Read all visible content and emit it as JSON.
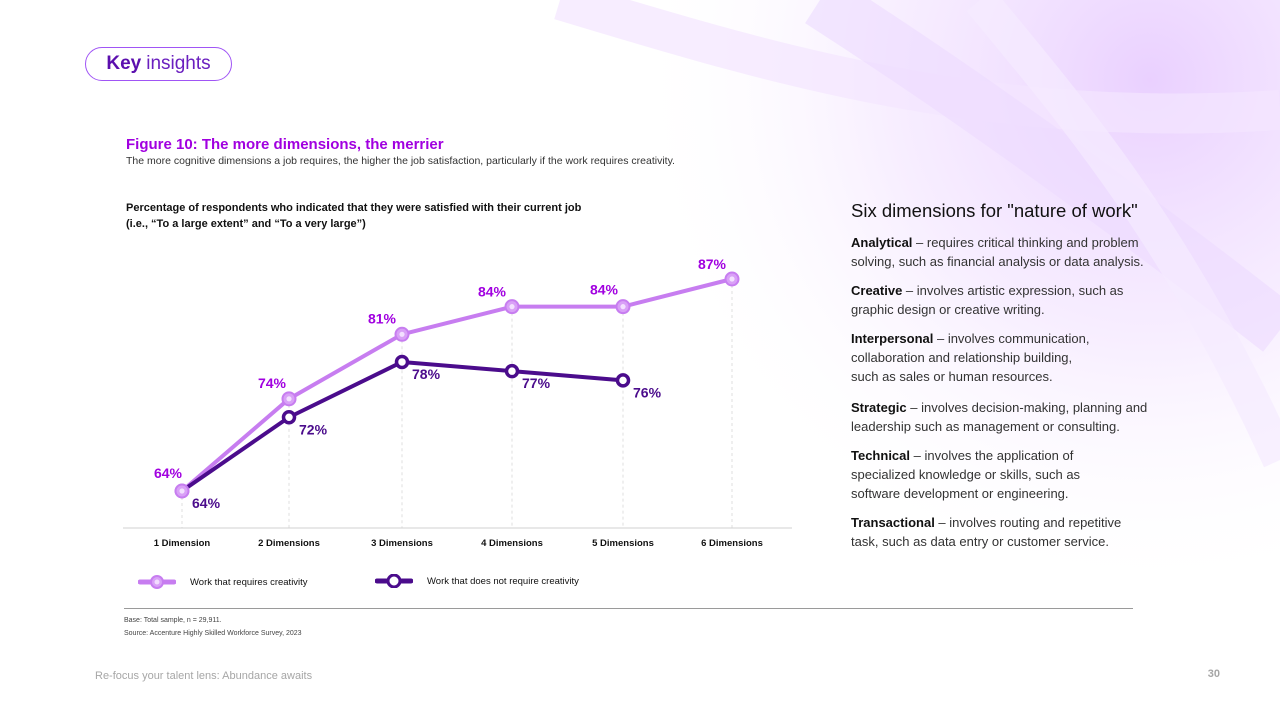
{
  "badge": {
    "bold": "Key",
    "text": "insights"
  },
  "figure": {
    "title": "Figure 10: The more dimensions, the merrier",
    "subtitle": "The more cognitive dimensions a job requires, the higher the job satisfaction, particularly if the work requires creativity."
  },
  "chart_question": {
    "line1": "Percentage of respondents who indicated that they were satisfied with their current job",
    "line2": "(i.e., “To a large extent” and “To a very large”)"
  },
  "chart_data": {
    "type": "line",
    "categories": [
      "1 Dimension",
      "2 Dimensions",
      "3 Dimensions",
      "4 Dimensions",
      "5 Dimensions",
      "6 Dimensions"
    ],
    "series": [
      {
        "name": "Work that requires creativity",
        "values": [
          64,
          74,
          81,
          84,
          84,
          87
        ],
        "labels": [
          "64%",
          "74%",
          "81%",
          "84%",
          "84%",
          "87%"
        ],
        "color": "#c77df0"
      },
      {
        "name": "Work that does not require creativity",
        "values": [
          64,
          72,
          78,
          77,
          76,
          null
        ],
        "labels": [
          "64%",
          "72%",
          "78%",
          "77%",
          "76%",
          ""
        ],
        "color": "#4b0c8c"
      }
    ],
    "ylim": [
      50,
      95
    ],
    "grid": "vertical-dashed",
    "legend": "bottom-left"
  },
  "colors": {
    "accent": "#a100e0",
    "light_series": "#c77df0",
    "dark_series": "#4b0c8c"
  },
  "notes": {
    "base": "Base: Total sample, n = 29,911.",
    "source": "Source: Accenture Highly Skilled Workforce Survey, 2023"
  },
  "side": {
    "heading": "Six dimensions for \"nature of work\"",
    "dimensions": [
      {
        "name": "Analytical",
        "desc": " – requires critical thinking and problem solving, such as financial analysis or data analysis."
      },
      {
        "name": "Creative",
        "desc": " – involves artistic expression, such as graphic design or creative writing."
      },
      {
        "name": "Interpersonal",
        "desc": " – involves communication, collaboration and relationship building, such as sales or human resources."
      },
      {
        "name": "Strategic",
        "desc": " – involves decision-making, planning and leadership such as management or consulting."
      },
      {
        "name": "Technical",
        "desc": " – involves the application of specialized knowledge or skills, such as software development or engineering."
      },
      {
        "name": "Transactional",
        "desc": " – involves routing and repetitive task, such as data entry or customer service."
      }
    ]
  },
  "footer": {
    "title": "Re-focus your talent lens: Abundance awaits",
    "page": "30"
  }
}
